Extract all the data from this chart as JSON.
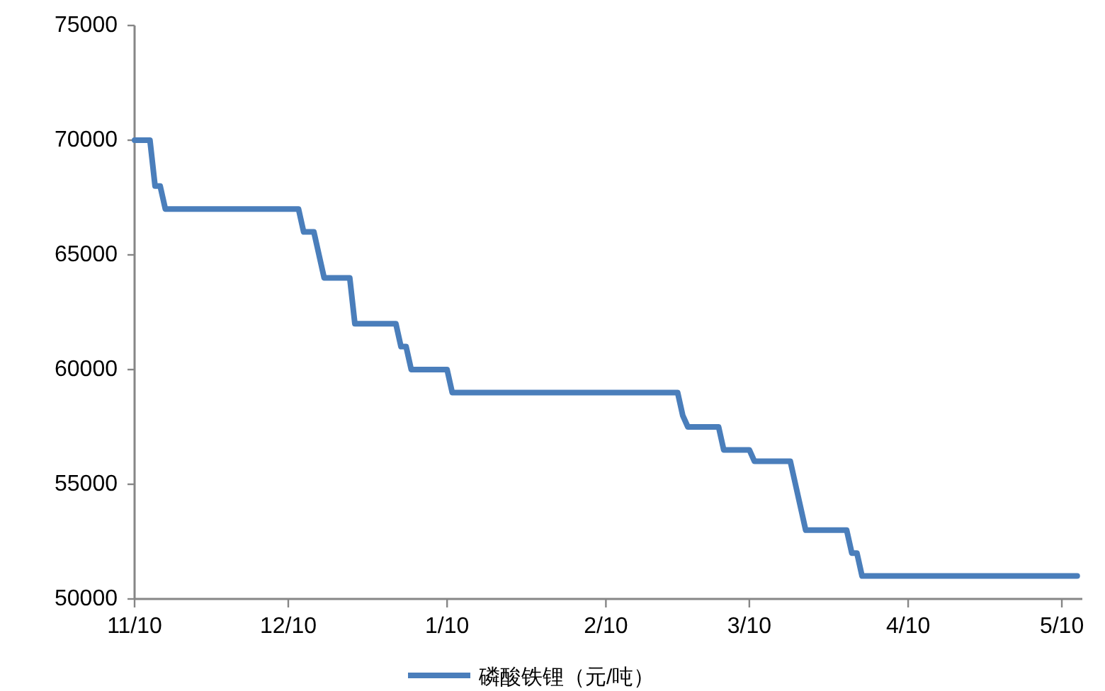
{
  "chart_data": {
    "type": "line",
    "legend": "bottom",
    "grid": false,
    "marker": "none",
    "line_style": "solid",
    "categories": [
      "11/10",
      null,
      null,
      null,
      null,
      null,
      null,
      null,
      null,
      null,
      null,
      null,
      null,
      null,
      null,
      null,
      null,
      null,
      null,
      null,
      null,
      null,
      null,
      null,
      null,
      null,
      null,
      null,
      null,
      null,
      "12/10",
      null,
      null,
      null,
      null,
      null,
      null,
      null,
      null,
      null,
      null,
      null,
      null,
      null,
      null,
      null,
      null,
      null,
      null,
      null,
      null,
      null,
      null,
      null,
      null,
      null,
      null,
      null,
      null,
      null,
      null,
      "1/10",
      null,
      null,
      null,
      null,
      null,
      null,
      null,
      null,
      null,
      null,
      null,
      null,
      null,
      null,
      null,
      null,
      null,
      null,
      null,
      null,
      null,
      null,
      null,
      null,
      null,
      null,
      null,
      null,
      null,
      null,
      "2/10",
      null,
      null,
      null,
      null,
      null,
      null,
      null,
      null,
      null,
      null,
      null,
      null,
      null,
      null,
      null,
      null,
      null,
      null,
      null,
      null,
      null,
      null,
      null,
      null,
      null,
      null,
      null,
      "3/10",
      null,
      null,
      null,
      null,
      null,
      null,
      null,
      null,
      null,
      null,
      null,
      null,
      null,
      null,
      null,
      null,
      null,
      null,
      null,
      null,
      null,
      null,
      null,
      null,
      null,
      null,
      null,
      null,
      null,
      null,
      "4/10",
      null,
      null,
      null,
      null,
      null,
      null,
      null,
      null,
      null,
      null,
      null,
      null,
      null,
      null,
      null,
      null,
      null,
      null,
      null,
      null,
      null,
      null,
      null,
      null,
      null,
      null,
      null,
      null,
      null,
      "5/10",
      null,
      null,
      null
    ],
    "series": [
      {
        "name": "磷酸铁锂（元/吨）",
        "color": "#4a7ebb",
        "values": [
          70000,
          70000,
          70000,
          70000,
          68000,
          68000,
          67000,
          67000,
          67000,
          67000,
          67000,
          67000,
          67000,
          67000,
          67000,
          67000,
          67000,
          67000,
          67000,
          67000,
          67000,
          67000,
          67000,
          67000,
          67000,
          67000,
          67000,
          67000,
          67000,
          67000,
          67000,
          67000,
          67000,
          66000,
          66000,
          66000,
          65000,
          64000,
          64000,
          64000,
          64000,
          64000,
          64000,
          62000,
          62000,
          62000,
          62000,
          62000,
          62000,
          62000,
          62000,
          62000,
          61000,
          61000,
          60000,
          60000,
          60000,
          60000,
          60000,
          60000,
          60000,
          60000,
          59000,
          59000,
          59000,
          59000,
          59000,
          59000,
          59000,
          59000,
          59000,
          59000,
          59000,
          59000,
          59000,
          59000,
          59000,
          59000,
          59000,
          59000,
          59000,
          59000,
          59000,
          59000,
          59000,
          59000,
          59000,
          59000,
          59000,
          59000,
          59000,
          59000,
          59000,
          59000,
          59000,
          59000,
          59000,
          59000,
          59000,
          59000,
          59000,
          59000,
          59000,
          59000,
          59000,
          59000,
          59000,
          58000,
          57500,
          57500,
          57500,
          57500,
          57500,
          57500,
          57500,
          56500,
          56500,
          56500,
          56500,
          56500,
          56500,
          56000,
          56000,
          56000,
          56000,
          56000,
          56000,
          56000,
          56000,
          55000,
          54000,
          53000,
          53000,
          53000,
          53000,
          53000,
          53000,
          53000,
          53000,
          53000,
          52000,
          52000,
          51000,
          51000,
          51000,
          51000,
          51000,
          51000,
          51000,
          51000,
          51000,
          51000,
          51000,
          51000,
          51000,
          51000,
          51000,
          51000,
          51000,
          51000,
          51000,
          51000,
          51000,
          51000,
          51000,
          51000,
          51000,
          51000,
          51000,
          51000,
          51000,
          51000,
          51000,
          51000,
          51000,
          51000,
          51000,
          51000,
          51000,
          51000,
          51000,
          51000,
          51000,
          51000,
          51000
        ]
      }
    ],
    "ylim": [
      50000,
      75000
    ],
    "yticks": [
      50000,
      55000,
      60000,
      65000,
      70000,
      75000
    ]
  }
}
